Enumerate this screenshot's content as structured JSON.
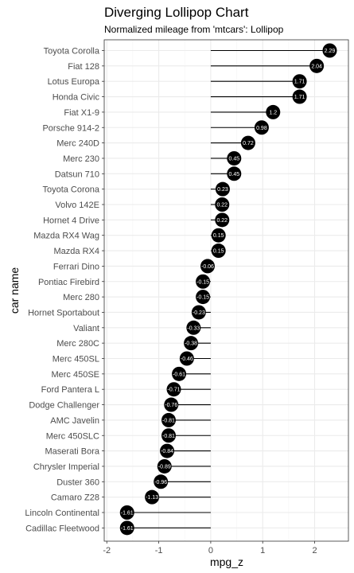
{
  "chart_data": {
    "type": "lollipop",
    "title": "Diverging Lollipop Chart",
    "subtitle": "Normalized mileage from 'mtcars': Lollipop",
    "xlabel": "mpg_z",
    "ylabel": "car name",
    "xlim": [
      -2.05,
      2.65
    ],
    "xticks": [
      -2,
      -1,
      0,
      1,
      2
    ],
    "grid": true,
    "categories": [
      "Toyota Corolla",
      "Fiat 128",
      "Lotus Europa",
      "Honda Civic",
      "Fiat X1-9",
      "Porsche 914-2",
      "Merc 240D",
      "Merc 230",
      "Datsun 710",
      "Toyota Corona",
      "Volvo 142E",
      "Hornet 4 Drive",
      "Mazda RX4 Wag",
      "Mazda RX4",
      "Ferrari Dino",
      "Pontiac Firebird",
      "Merc 280",
      "Hornet Sportabout",
      "Valiant",
      "Merc 280C",
      "Merc 450SL",
      "Merc 450SE",
      "Ford Pantera L",
      "Dodge Challenger",
      "AMC Javelin",
      "Merc 450SLC",
      "Maserati Bora",
      "Chrysler Imperial",
      "Duster 360",
      "Camaro Z28",
      "Lincoln Continental",
      "Cadillac Fleetwood"
    ],
    "values": [
      2.29,
      2.04,
      1.71,
      1.71,
      1.2,
      0.98,
      0.72,
      0.45,
      0.45,
      0.23,
      0.22,
      0.22,
      0.15,
      0.15,
      -0.06,
      -0.15,
      -0.15,
      -0.23,
      -0.33,
      -0.38,
      -0.46,
      -0.61,
      -0.71,
      -0.76,
      -0.81,
      -0.81,
      -0.84,
      -0.89,
      -0.96,
      -1.13,
      -1.61,
      -1.61
    ],
    "labels": [
      "2.29",
      "2.04",
      "1.71",
      "1.71",
      "1.2",
      "0.98",
      "0.72",
      "0.45",
      "0.45",
      "0.23",
      "0.22",
      "0.22",
      "0.15",
      "0.15",
      "-0.06",
      "-0.15",
      "-0.15",
      "-0.23",
      "-0.33",
      "-0.38",
      "-0.46",
      "-0.61",
      "-0.71",
      "-0.76",
      "-0.81",
      "-0.81",
      "-0.84",
      "-0.89",
      "-0.96",
      "-1.13",
      "-1.61",
      "-1.61"
    ],
    "colors": {
      "point": "#000000",
      "segment": "#000000",
      "label": "#ffffff",
      "grid_major": "#ebebeb",
      "grid_minor": "#f5f5f5",
      "panel_border": "#333333"
    }
  }
}
